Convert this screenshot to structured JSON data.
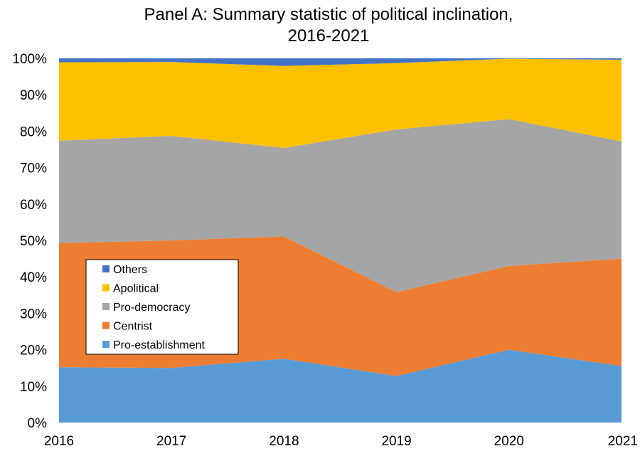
{
  "chart_data": {
    "type": "area",
    "stacked": true,
    "title_lines": [
      "Panel A: Summary statistic of political inclination,",
      "2016-2021"
    ],
    "xlabel": "",
    "ylabel": "",
    "x": [
      "2016",
      "2017",
      "2018",
      "2019",
      "2020",
      "2021"
    ],
    "y_ticks": [
      "0%",
      "10%",
      "20%",
      "30%",
      "40%",
      "50%",
      "60%",
      "70%",
      "80%",
      "90%",
      "100%"
    ],
    "ylim": [
      0,
      100
    ],
    "legend_position": "middle-left",
    "series": [
      {
        "name": "Pro-establishment",
        "color": "#5B9BD5",
        "values": [
          15.2,
          15.0,
          17.5,
          12.8,
          20.0,
          15.5
        ]
      },
      {
        "name": "Centrist",
        "color": "#ED7D31",
        "values": [
          34.1,
          35.0,
          33.6,
          23.0,
          23.0,
          29.5
        ]
      },
      {
        "name": "Pro-democracy",
        "color": "#A5A5A5",
        "values": [
          28.1,
          28.7,
          24.3,
          44.7,
          40.3,
          32.2
        ]
      },
      {
        "name": "Apolitical",
        "color": "#FFC000",
        "values": [
          21.5,
          20.3,
          22.5,
          18.2,
          16.6,
          22.4
        ]
      },
      {
        "name": "Others",
        "color": "#4472C4",
        "values": [
          1.1,
          1.0,
          2.1,
          1.3,
          0.1,
          0.4
        ]
      }
    ],
    "legend_order": [
      "Others",
      "Apolitical",
      "Pro-democracy",
      "Centrist",
      "Pro-establishment"
    ]
  }
}
